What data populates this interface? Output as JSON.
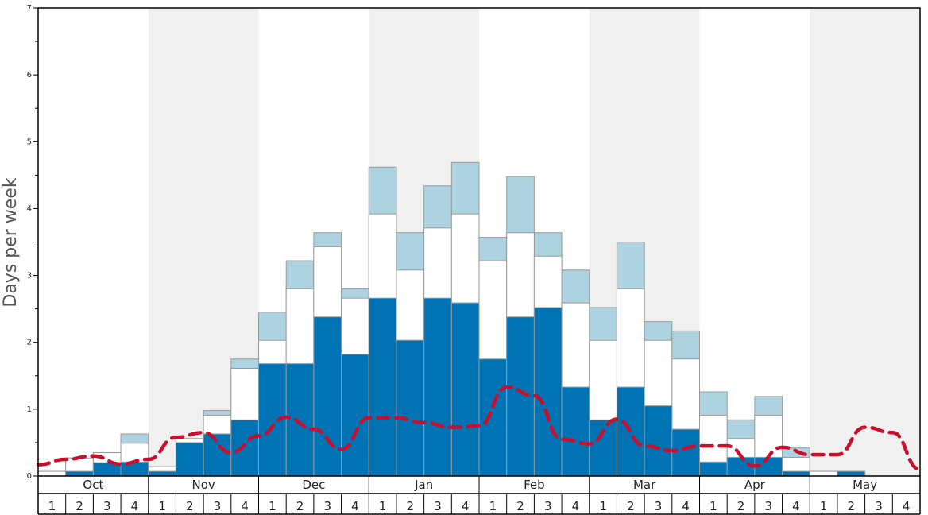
{
  "chart_data": {
    "type": "bar",
    "ylabel": "Days per week",
    "xlabel": "",
    "ylim": [
      0,
      7
    ],
    "yticks": [
      0,
      1,
      2,
      3,
      4,
      5,
      6,
      7
    ],
    "months": [
      "Oct",
      "Nov",
      "Dec",
      "Jan",
      "Feb",
      "Mar",
      "Apr",
      "May"
    ],
    "week_labels": [
      "1",
      "2",
      "3",
      "4"
    ],
    "colors": {
      "dark": "#0073b4",
      "white": "#ffffff",
      "light": "#aed3e0",
      "line": "#c8102e",
      "shade": "#f0f0f0",
      "bar_border": "#9a9a9a"
    },
    "series": [
      {
        "key": "dark",
        "values": [
          0,
          0.07,
          0.2,
          0.21,
          0.07,
          0.5,
          0.63,
          0.84,
          1.68,
          1.68,
          2.38,
          1.82,
          2.66,
          2.03,
          2.66,
          2.59,
          1.75,
          2.38,
          2.52,
          1.33,
          0.84,
          1.33,
          1.05,
          0.7,
          0.21,
          0.28,
          0.28,
          0.07,
          0,
          0.07,
          0,
          0
        ]
      },
      {
        "key": "white",
        "values": [
          0.07,
          0.27,
          0.35,
          0.49,
          0.14,
          0.56,
          0.91,
          1.61,
          2.03,
          2.8,
          3.43,
          2.66,
          3.92,
          3.08,
          3.71,
          3.92,
          3.22,
          3.64,
          3.29,
          2.59,
          2.03,
          2.8,
          2.03,
          1.75,
          0.91,
          0.56,
          0.91,
          0.28,
          0.07,
          0.07,
          0,
          0
        ]
      },
      {
        "key": "light",
        "values": [
          0.07,
          0.27,
          0.35,
          0.63,
          0.14,
          0.56,
          0.98,
          1.75,
          2.45,
          3.22,
          3.64,
          2.8,
          4.62,
          3.64,
          4.34,
          4.69,
          3.57,
          4.48,
          3.64,
          3.08,
          2.52,
          3.5,
          2.31,
          2.17,
          1.26,
          0.84,
          1.19,
          0.42,
          0.07,
          0.07,
          0,
          0
        ]
      }
    ],
    "line": [
      0.17,
      0.25,
      0.3,
      0.18,
      0.25,
      0.58,
      0.65,
      0.35,
      0.6,
      0.88,
      0.7,
      0.4,
      0.87,
      0.87,
      0.8,
      0.73,
      0.75,
      1.33,
      1.2,
      0.55,
      0.48,
      0.85,
      0.45,
      0.38,
      0.45,
      0.45,
      0.15,
      0.43,
      0.32,
      0.32,
      0.73,
      0.65,
      0.1
    ]
  }
}
